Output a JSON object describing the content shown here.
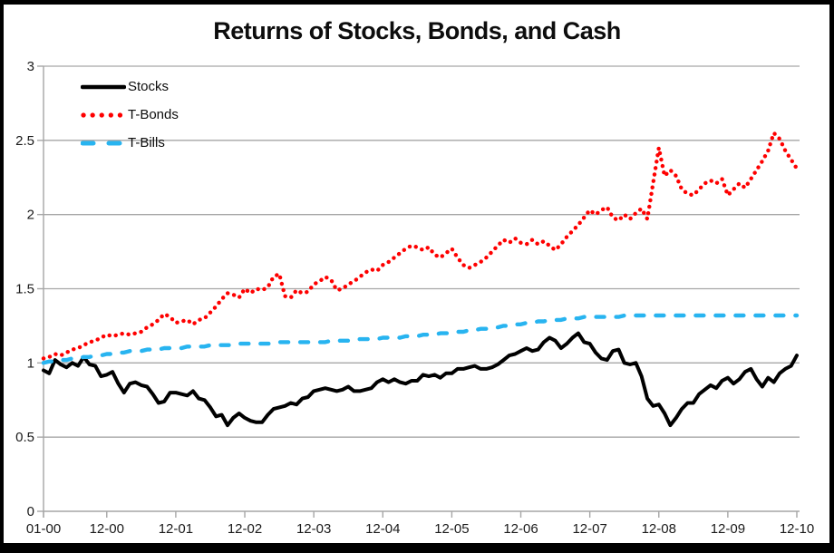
{
  "title": "Returns of Stocks, Bonds, and Cash",
  "colors": {
    "stocks": "#000000",
    "t_bonds": "#fe0000",
    "t_bills": "#28b4f0",
    "grid": "#a6a6a6",
    "axis": "#a6a6a6",
    "tick_label": "#1a1a1a",
    "frame": "#000000",
    "background": "#ffffff"
  },
  "chart_data": {
    "type": "line",
    "title": "Returns of Stocks, Bonds, and Cash",
    "xlabel": "",
    "ylabel": "",
    "grid": "horizontal",
    "legend_position": "inside-top-left",
    "x_axis": {
      "start": "01-00",
      "end": "12-10",
      "frequency": "monthly",
      "tick_labels": [
        "01-00",
        "12-00",
        "12-01",
        "12-02",
        "12-03",
        "12-04",
        "12-05",
        "12-06",
        "12-07",
        "12-08",
        "12-09",
        "12-10"
      ],
      "tick_month_indices": [
        0,
        11,
        23,
        35,
        47,
        59,
        71,
        83,
        95,
        107,
        119,
        131
      ]
    },
    "y_axis": {
      "ticks": [
        "0",
        "0.5",
        "1",
        "1.5",
        "2",
        "2.5",
        "3"
      ],
      "tick_values": [
        0,
        0.5,
        1,
        1.5,
        2,
        2.5,
        3
      ],
      "range": [
        0,
        3
      ]
    },
    "series": [
      {
        "name": "Stocks",
        "style": "solid",
        "color": "#000000",
        "values": [
          0.95,
          0.93,
          1.02,
          0.99,
          0.97,
          1.0,
          0.98,
          1.04,
          0.99,
          0.98,
          0.91,
          0.92,
          0.94,
          0.86,
          0.8,
          0.86,
          0.87,
          0.85,
          0.84,
          0.79,
          0.73,
          0.74,
          0.8,
          0.8,
          0.79,
          0.78,
          0.81,
          0.76,
          0.75,
          0.7,
          0.64,
          0.65,
          0.58,
          0.63,
          0.66,
          0.63,
          0.61,
          0.6,
          0.6,
          0.65,
          0.69,
          0.7,
          0.71,
          0.73,
          0.72,
          0.76,
          0.77,
          0.81,
          0.82,
          0.83,
          0.82,
          0.81,
          0.82,
          0.84,
          0.81,
          0.81,
          0.82,
          0.83,
          0.87,
          0.89,
          0.87,
          0.89,
          0.87,
          0.86,
          0.88,
          0.88,
          0.92,
          0.91,
          0.92,
          0.9,
          0.93,
          0.93,
          0.96,
          0.96,
          0.97,
          0.98,
          0.96,
          0.96,
          0.97,
          0.99,
          1.02,
          1.05,
          1.06,
          1.08,
          1.1,
          1.08,
          1.09,
          1.14,
          1.17,
          1.15,
          1.1,
          1.13,
          1.17,
          1.2,
          1.14,
          1.13,
          1.07,
          1.03,
          1.02,
          1.08,
          1.09,
          1.0,
          0.99,
          1.0,
          0.91,
          0.76,
          0.71,
          0.72,
          0.66,
          0.58,
          0.63,
          0.69,
          0.73,
          0.73,
          0.79,
          0.82,
          0.85,
          0.83,
          0.88,
          0.9,
          0.86,
          0.89,
          0.94,
          0.96,
          0.89,
          0.84,
          0.9,
          0.87,
          0.93,
          0.96,
          0.98,
          1.05
        ]
      },
      {
        "name": "T-Bonds",
        "style": "dotted",
        "color": "#fe0000",
        "values": [
          1.03,
          1.04,
          1.06,
          1.05,
          1.07,
          1.09,
          1.1,
          1.12,
          1.14,
          1.15,
          1.17,
          1.19,
          1.18,
          1.19,
          1.2,
          1.19,
          1.2,
          1.21,
          1.24,
          1.26,
          1.29,
          1.33,
          1.31,
          1.27,
          1.28,
          1.29,
          1.26,
          1.29,
          1.3,
          1.34,
          1.38,
          1.43,
          1.47,
          1.46,
          1.44,
          1.5,
          1.47,
          1.5,
          1.49,
          1.51,
          1.58,
          1.6,
          1.45,
          1.44,
          1.49,
          1.47,
          1.48,
          1.53,
          1.55,
          1.58,
          1.56,
          1.49,
          1.5,
          1.53,
          1.55,
          1.58,
          1.61,
          1.63,
          1.62,
          1.66,
          1.68,
          1.71,
          1.74,
          1.77,
          1.79,
          1.78,
          1.76,
          1.78,
          1.73,
          1.71,
          1.74,
          1.77,
          1.71,
          1.66,
          1.64,
          1.66,
          1.68,
          1.71,
          1.75,
          1.79,
          1.83,
          1.81,
          1.84,
          1.81,
          1.8,
          1.83,
          1.8,
          1.82,
          1.79,
          1.76,
          1.8,
          1.85,
          1.89,
          1.93,
          1.98,
          2.03,
          2.0,
          2.03,
          2.05,
          1.98,
          1.96,
          2.0,
          1.97,
          2.01,
          2.04,
          1.97,
          2.21,
          2.45,
          2.26,
          2.3,
          2.26,
          2.17,
          2.14,
          2.13,
          2.17,
          2.21,
          2.23,
          2.21,
          2.24,
          2.13,
          2.17,
          2.21,
          2.18,
          2.24,
          2.3,
          2.36,
          2.43,
          2.55,
          2.51,
          2.43,
          2.37,
          2.31
        ]
      },
      {
        "name": "T-Bills",
        "style": "dashed",
        "color": "#28b4f0",
        "values": [
          1.0,
          1.01,
          1.01,
          1.02,
          1.02,
          1.03,
          1.03,
          1.04,
          1.04,
          1.05,
          1.05,
          1.06,
          1.06,
          1.07,
          1.07,
          1.08,
          1.08,
          1.08,
          1.09,
          1.09,
          1.09,
          1.1,
          1.1,
          1.1,
          1.1,
          1.11,
          1.11,
          1.11,
          1.11,
          1.12,
          1.12,
          1.12,
          1.12,
          1.12,
          1.13,
          1.13,
          1.13,
          1.13,
          1.13,
          1.13,
          1.13,
          1.14,
          1.14,
          1.14,
          1.14,
          1.14,
          1.14,
          1.14,
          1.14,
          1.14,
          1.15,
          1.15,
          1.15,
          1.15,
          1.15,
          1.16,
          1.16,
          1.16,
          1.16,
          1.17,
          1.17,
          1.17,
          1.17,
          1.18,
          1.18,
          1.18,
          1.19,
          1.19,
          1.19,
          1.2,
          1.2,
          1.2,
          1.21,
          1.21,
          1.22,
          1.22,
          1.23,
          1.23,
          1.24,
          1.24,
          1.25,
          1.25,
          1.26,
          1.26,
          1.27,
          1.27,
          1.28,
          1.28,
          1.29,
          1.29,
          1.29,
          1.3,
          1.3,
          1.3,
          1.31,
          1.31,
          1.31,
          1.31,
          1.31,
          1.31,
          1.31,
          1.32,
          1.32,
          1.32,
          1.32,
          1.32,
          1.32,
          1.32,
          1.32,
          1.32,
          1.32,
          1.32,
          1.32,
          1.32,
          1.32,
          1.32,
          1.32,
          1.32,
          1.32,
          1.32,
          1.32,
          1.32,
          1.32,
          1.32,
          1.32,
          1.32,
          1.32,
          1.32,
          1.32,
          1.32,
          1.32,
          1.32
        ]
      }
    ]
  }
}
